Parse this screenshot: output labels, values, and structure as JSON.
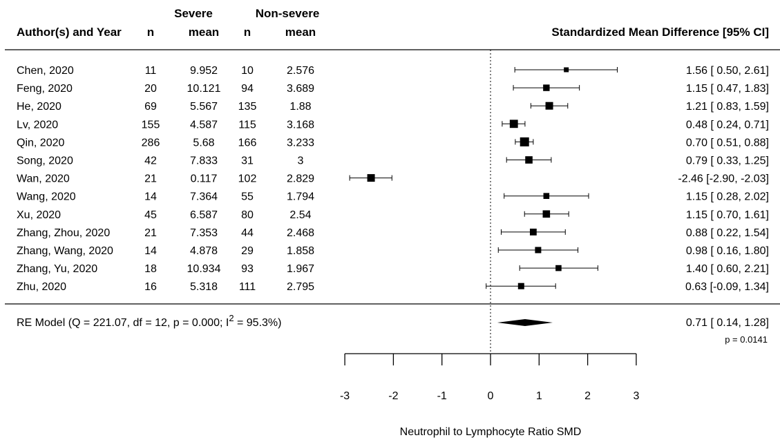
{
  "headers": {
    "author_year": "Author(s) and Year",
    "n_severe": "n",
    "severe_group": "Severe",
    "mean_severe": "mean",
    "n_nonsevere": "n",
    "nonsevere_group": "Non-severe",
    "mean_nonsevere": "mean",
    "effect": "Standardized Mean Difference [95% CI]"
  },
  "chart_data": {
    "type": "forest",
    "xlabel": "Neutrophil to Lymphocyte Ratio SMD",
    "xlim": [
      -3,
      3
    ],
    "x_ticks": [
      "-3",
      "-2",
      "-1",
      "0",
      "1",
      "2",
      "3"
    ],
    "x_tick_values": [
      -3,
      -2,
      -1,
      0,
      1,
      2,
      3
    ],
    "reference_line": 0,
    "studies": [
      {
        "label": "Chen, 2020",
        "n1": "11",
        "mean1": "9.952",
        "n2": "10",
        "mean2": "2.576",
        "smd": 1.56,
        "lo": 0.5,
        "hi": 2.61,
        "ci_text": "1.56 [ 0.50,  2.61]"
      },
      {
        "label": "Feng, 2020",
        "n1": "20",
        "mean1": "10.121",
        "n2": "94",
        "mean2": "3.689",
        "smd": 1.15,
        "lo": 0.47,
        "hi": 1.83,
        "ci_text": "1.15 [ 0.47,  1.83]"
      },
      {
        "label": "He, 2020",
        "n1": "69",
        "mean1": "5.567",
        "n2": "135",
        "mean2": "1.88",
        "smd": 1.21,
        "lo": 0.83,
        "hi": 1.59,
        "ci_text": "1.21 [ 0.83,  1.59]"
      },
      {
        "label": "Lv, 2020",
        "n1": "155",
        "mean1": "4.587",
        "n2": "115",
        "mean2": "3.168",
        "smd": 0.48,
        "lo": 0.24,
        "hi": 0.71,
        "ci_text": "0.48 [ 0.24,  0.71]"
      },
      {
        "label": "Qin, 2020",
        "n1": "286",
        "mean1": "5.68",
        "n2": "166",
        "mean2": "3.233",
        "smd": 0.7,
        "lo": 0.51,
        "hi": 0.88,
        "ci_text": "0.70 [ 0.51,  0.88]"
      },
      {
        "label": "Song, 2020",
        "n1": "42",
        "mean1": "7.833",
        "n2": "31",
        "mean2": "3",
        "smd": 0.79,
        "lo": 0.33,
        "hi": 1.25,
        "ci_text": "0.79 [ 0.33,  1.25]"
      },
      {
        "label": "Wan, 2020",
        "n1": "21",
        "mean1": "0.117",
        "n2": "102",
        "mean2": "2.829",
        "smd": -2.46,
        "lo": -2.9,
        "hi": -2.03,
        "ci_text": "-2.46 [-2.90, -2.03]"
      },
      {
        "label": "Wang, 2020",
        "n1": "14",
        "mean1": "7.364",
        "n2": "55",
        "mean2": "1.794",
        "smd": 1.15,
        "lo": 0.28,
        "hi": 2.02,
        "ci_text": "1.15 [ 0.28,  2.02]"
      },
      {
        "label": "Xu, 2020",
        "n1": "45",
        "mean1": "6.587",
        "n2": "80",
        "mean2": "2.54",
        "smd": 1.15,
        "lo": 0.7,
        "hi": 1.61,
        "ci_text": "1.15 [ 0.70,  1.61]"
      },
      {
        "label": "Zhang, Zhou, 2020",
        "n1": "21",
        "mean1": "7.353",
        "n2": "44",
        "mean2": "2.468",
        "smd": 0.88,
        "lo": 0.22,
        "hi": 1.54,
        "ci_text": "0.88 [ 0.22,  1.54]"
      },
      {
        "label": "Zhang, Wang, 2020",
        "n1": "14",
        "mean1": "4.878",
        "n2": "29",
        "mean2": "1.858",
        "smd": 0.98,
        "lo": 0.16,
        "hi": 1.8,
        "ci_text": "0.98 [ 0.16,  1.80]"
      },
      {
        "label": "Zhang, Yu, 2020",
        "n1": "18",
        "mean1": "10.934",
        "n2": "93",
        "mean2": "1.967",
        "smd": 1.4,
        "lo": 0.6,
        "hi": 2.21,
        "ci_text": "1.40 [ 0.60,  2.21]"
      },
      {
        "label": "Zhu, 2020",
        "n1": "16",
        "mean1": "5.318",
        "n2": "111",
        "mean2": "2.795",
        "smd": 0.63,
        "lo": -0.09,
        "hi": 1.34,
        "ci_text": "0.63 [-0.09,  1.34]"
      }
    ],
    "weights_box_relative": [
      0.25,
      0.55,
      0.75,
      0.85,
      1.0,
      0.7,
      0.75,
      0.45,
      0.7,
      0.6,
      0.5,
      0.45,
      0.5
    ],
    "summary": {
      "label_pre": "RE Model (Q = 221.07, df = 12, p = 0.000; I",
      "label_sup": "2",
      "label_post": " = 95.3%)",
      "smd": 0.71,
      "lo": 0.14,
      "hi": 1.28,
      "ci_text": "0.71 [ 0.14,  1.28]",
      "p_text": "p = 0.0141"
    }
  }
}
